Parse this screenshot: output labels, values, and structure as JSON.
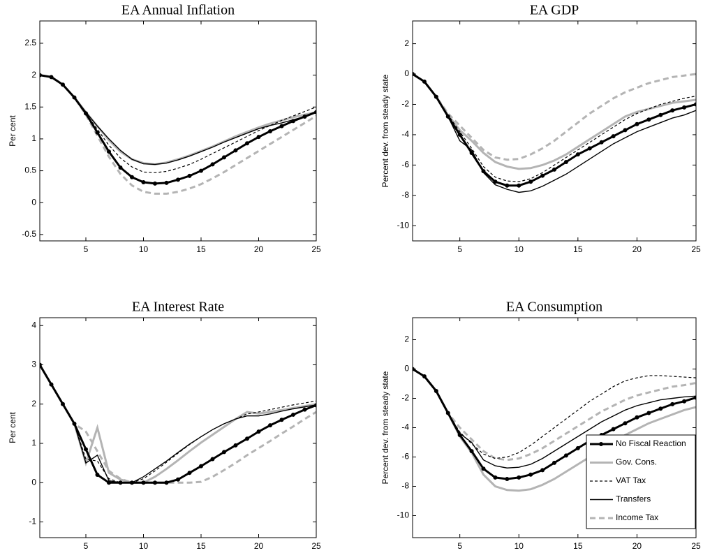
{
  "chart_data": [
    {
      "type": "line",
      "title": "EA Annual Inflation",
      "y_label": "Per cent",
      "x": [
        1,
        2,
        3,
        4,
        5,
        6,
        7,
        8,
        9,
        10,
        11,
        12,
        13,
        14,
        15,
        16,
        17,
        18,
        19,
        20,
        21,
        22,
        23,
        24,
        25
      ],
      "xlim": [
        1,
        25
      ],
      "xticks": [
        5,
        10,
        15,
        20,
        25
      ],
      "ylim": [
        -0.6,
        2.85
      ],
      "yticks": [
        -0.5,
        0,
        0.5,
        1,
        1.5,
        2,
        2.5
      ],
      "series": [
        {
          "color": "#000000",
          "line_width": 3,
          "line_style": "solid",
          "marker": "dot",
          "values": [
            2.0,
            1.97,
            1.85,
            1.65,
            1.4,
            1.1,
            0.8,
            0.55,
            0.4,
            0.32,
            0.3,
            0.31,
            0.36,
            0.42,
            0.5,
            0.6,
            0.71,
            0.82,
            0.93,
            1.03,
            1.12,
            1.2,
            1.28,
            1.35,
            1.42
          ]
        },
        {
          "color": "#b4b4b4",
          "line_width": 3,
          "line_style": "solid",
          "values": [
            2.0,
            1.97,
            1.85,
            1.65,
            1.42,
            1.2,
            0.98,
            0.8,
            0.68,
            0.62,
            0.6,
            0.63,
            0.68,
            0.74,
            0.81,
            0.88,
            0.96,
            1.04,
            1.11,
            1.18,
            1.24,
            1.29,
            1.34,
            1.38,
            1.42
          ]
        },
        {
          "color": "#000000",
          "line_width": 1.2,
          "line_style": "dashed",
          "values": [
            2.0,
            1.97,
            1.85,
            1.65,
            1.4,
            1.15,
            0.9,
            0.7,
            0.56,
            0.48,
            0.47,
            0.49,
            0.54,
            0.6,
            0.68,
            0.77,
            0.86,
            0.95,
            1.04,
            1.13,
            1.21,
            1.29,
            1.36,
            1.43,
            1.5
          ]
        },
        {
          "color": "#000000",
          "line_width": 1.4,
          "line_style": "solid",
          "values": [
            2.0,
            1.97,
            1.85,
            1.65,
            1.42,
            1.2,
            1.0,
            0.82,
            0.68,
            0.61,
            0.6,
            0.62,
            0.67,
            0.73,
            0.8,
            0.87,
            0.95,
            1.02,
            1.09,
            1.16,
            1.21,
            1.25,
            1.3,
            1.35,
            1.42
          ]
        },
        {
          "color": "#b4b4b4",
          "line_width": 3,
          "line_style": "dashed",
          "values": [
            2.0,
            1.97,
            1.85,
            1.65,
            1.38,
            1.05,
            0.72,
            0.45,
            0.27,
            0.17,
            0.14,
            0.14,
            0.17,
            0.22,
            0.29,
            0.38,
            0.48,
            0.59,
            0.7,
            0.81,
            0.92,
            1.03,
            1.14,
            1.25,
            1.36
          ]
        }
      ]
    },
    {
      "type": "line",
      "title": "EA GDP",
      "y_label": "Percent dev. from steady state",
      "x": [
        1,
        2,
        3,
        4,
        5,
        6,
        7,
        8,
        9,
        10,
        11,
        12,
        13,
        14,
        15,
        16,
        17,
        18,
        19,
        20,
        21,
        22,
        23,
        24,
        25
      ],
      "xlim": [
        1,
        25
      ],
      "xticks": [
        5,
        10,
        15,
        20,
        25
      ],
      "ylim": [
        -11,
        3.5
      ],
      "yticks": [
        -10,
        -8,
        -6,
        -4,
        -2,
        0,
        2
      ],
      "series": [
        {
          "color": "#000000",
          "line_width": 3,
          "line_style": "solid",
          "marker": "dot",
          "values": [
            0,
            -0.5,
            -1.5,
            -2.8,
            -4,
            -5.2,
            -6.4,
            -7.1,
            -7.35,
            -7.35,
            -7.1,
            -6.7,
            -6.3,
            -5.8,
            -5.3,
            -4.9,
            -4.5,
            -4.1,
            -3.7,
            -3.3,
            -3.0,
            -2.7,
            -2.4,
            -2.2,
            -2.0
          ]
        },
        {
          "color": "#b4b4b4",
          "line_width": 3,
          "line_style": "solid",
          "values": [
            0,
            -0.5,
            -1.5,
            -2.7,
            -3.7,
            -4.4,
            -5.2,
            -5.8,
            -6.1,
            -6.25,
            -6.2,
            -6.0,
            -5.7,
            -5.3,
            -4.8,
            -4.3,
            -3.8,
            -3.3,
            -2.8,
            -2.5,
            -2.3,
            -2.1,
            -1.9,
            -1.8,
            -1.7
          ]
        },
        {
          "color": "#000000",
          "line_width": 1.2,
          "line_style": "dashed",
          "values": [
            0,
            -0.5,
            -1.5,
            -2.7,
            -3.8,
            -4.9,
            -6.1,
            -6.8,
            -7.05,
            -7.1,
            -6.9,
            -6.5,
            -6.0,
            -5.5,
            -5.0,
            -4.5,
            -4.0,
            -3.5,
            -3.0,
            -2.6,
            -2.3,
            -2.0,
            -1.8,
            -1.6,
            -1.45
          ]
        },
        {
          "color": "#000000",
          "line_width": 1.4,
          "line_style": "solid",
          "values": [
            0,
            -0.5,
            -1.5,
            -2.8,
            -4.4,
            -5.0,
            -6.5,
            -7.3,
            -7.6,
            -7.8,
            -7.7,
            -7.4,
            -7.0,
            -6.6,
            -6.1,
            -5.6,
            -5.1,
            -4.6,
            -4.2,
            -3.8,
            -3.5,
            -3.2,
            -2.9,
            -2.7,
            -2.4
          ]
        },
        {
          "color": "#b4b4b4",
          "line_width": 3,
          "line_style": "dashed",
          "values": [
            0,
            -0.5,
            -1.5,
            -2.6,
            -3.4,
            -4.2,
            -5.0,
            -5.5,
            -5.65,
            -5.6,
            -5.3,
            -4.9,
            -4.4,
            -3.8,
            -3.2,
            -2.6,
            -2.1,
            -1.6,
            -1.2,
            -0.9,
            -0.6,
            -0.4,
            -0.2,
            -0.1,
            0.0
          ]
        }
      ]
    },
    {
      "type": "line",
      "title": "EA Interest Rate",
      "y_label": "Per cent",
      "x": [
        1,
        2,
        3,
        4,
        5,
        6,
        7,
        8,
        9,
        10,
        11,
        12,
        13,
        14,
        15,
        16,
        17,
        18,
        19,
        20,
        21,
        22,
        23,
        24,
        25
      ],
      "xlim": [
        1,
        25
      ],
      "xticks": [
        5,
        10,
        15,
        20,
        25
      ],
      "ylim": [
        -1.4,
        4.2
      ],
      "yticks": [
        -1,
        0,
        1,
        2,
        3,
        4
      ],
      "series": [
        {
          "color": "#000000",
          "line_width": 3,
          "line_style": "solid",
          "marker": "dot",
          "values": [
            3,
            2.5,
            2,
            1.5,
            0.85,
            0.2,
            0,
            0,
            0,
            0,
            0,
            0,
            0.08,
            0.25,
            0.42,
            0.6,
            0.78,
            0.95,
            1.12,
            1.3,
            1.46,
            1.6,
            1.73,
            1.86,
            1.97
          ]
        },
        {
          "color": "#b4b4b4",
          "line_width": 3,
          "line_style": "solid",
          "values": [
            3,
            2.5,
            2,
            1.5,
            0.5,
            1.4,
            0.25,
            0.08,
            0,
            0,
            0.15,
            0.35,
            0.57,
            0.8,
            1.02,
            1.22,
            1.42,
            1.62,
            1.8,
            1.76,
            1.8,
            1.85,
            1.9,
            1.95,
            2.0
          ]
        },
        {
          "color": "#000000",
          "line_width": 1.2,
          "line_style": "dashed",
          "values": [
            3,
            2.5,
            2,
            1.5,
            0.6,
            0.55,
            0.1,
            0,
            0,
            0.1,
            0.3,
            0.52,
            0.75,
            0.97,
            1.17,
            1.35,
            1.5,
            1.62,
            1.75,
            1.8,
            1.86,
            1.92,
            1.98,
            2.03,
            2.08
          ]
        },
        {
          "color": "#000000",
          "line_width": 1.4,
          "line_style": "solid",
          "values": [
            3,
            2.5,
            2,
            1.5,
            0.5,
            0.7,
            0.05,
            0,
            0,
            0.15,
            0.35,
            0.55,
            0.77,
            0.98,
            1.17,
            1.35,
            1.5,
            1.62,
            1.7,
            1.7,
            1.75,
            1.82,
            1.88,
            1.93,
            1.98
          ]
        },
        {
          "color": "#b4b4b4",
          "line_width": 3,
          "line_style": "dashed",
          "values": [
            3,
            2.5,
            2,
            1.5,
            1.3,
            0.8,
            0.3,
            0.1,
            0,
            0,
            0,
            0,
            0,
            0,
            0.02,
            0.15,
            0.32,
            0.5,
            0.7,
            0.88,
            1.06,
            1.25,
            1.43,
            1.62,
            1.8
          ]
        }
      ]
    },
    {
      "type": "line",
      "title": "EA Consumption",
      "y_label": "Percent dev. from steady state",
      "x": [
        1,
        2,
        3,
        4,
        5,
        6,
        7,
        8,
        9,
        10,
        11,
        12,
        13,
        14,
        15,
        16,
        17,
        18,
        19,
        20,
        21,
        22,
        23,
        24,
        25
      ],
      "xlim": [
        1,
        25
      ],
      "xticks": [
        5,
        10,
        15,
        20,
        25
      ],
      "ylim": [
        -11.5,
        3.5
      ],
      "yticks": [
        -10,
        -8,
        -6,
        -4,
        -2,
        0,
        2
      ],
      "legend": "lower right",
      "series": [
        {
          "name": "No Fiscal Reaction",
          "color": "#000000",
          "line_width": 3,
          "line_style": "solid",
          "marker": "dot",
          "values": [
            0,
            -0.5,
            -1.5,
            -3,
            -4.5,
            -5.6,
            -6.8,
            -7.4,
            -7.5,
            -7.4,
            -7.2,
            -6.9,
            -6.4,
            -5.9,
            -5.4,
            -4.9,
            -4.5,
            -4.1,
            -3.7,
            -3.3,
            -3.0,
            -2.7,
            -2.4,
            -2.2,
            -1.95
          ]
        },
        {
          "name": "Gov. Cons.",
          "color": "#b4b4b4",
          "line_width": 3,
          "line_style": "solid",
          "values": [
            0,
            -0.5,
            -1.5,
            -3,
            -4.6,
            -5.7,
            -7.2,
            -8.0,
            -8.25,
            -8.3,
            -8.2,
            -7.9,
            -7.5,
            -7.0,
            -6.5,
            -6.0,
            -5.5,
            -5.0,
            -4.5,
            -4.1,
            -3.7,
            -3.4,
            -3.1,
            -2.8,
            -2.6
          ]
        },
        {
          "name": "VAT Tax",
          "color": "#000000",
          "line_width": 1.2,
          "line_style": "dashed",
          "values": [
            0,
            -0.5,
            -1.5,
            -3,
            -4.3,
            -5.1,
            -5.8,
            -6.1,
            -6.0,
            -5.7,
            -5.2,
            -4.6,
            -4.0,
            -3.4,
            -2.8,
            -2.2,
            -1.7,
            -1.2,
            -0.8,
            -0.6,
            -0.45,
            -0.45,
            -0.5,
            -0.55,
            -0.6
          ]
        },
        {
          "name": "Transfers",
          "color": "#000000",
          "line_width": 1.4,
          "line_style": "solid",
          "values": [
            0,
            -0.5,
            -1.5,
            -3,
            -4.4,
            -5.0,
            -6.2,
            -6.6,
            -6.75,
            -6.7,
            -6.5,
            -6.1,
            -5.6,
            -5.1,
            -4.6,
            -4.1,
            -3.6,
            -3.2,
            -2.8,
            -2.5,
            -2.3,
            -2.1,
            -2.0,
            -1.9,
            -1.85
          ]
        },
        {
          "name": "Income Tax",
          "color": "#b4b4b4",
          "line_width": 3,
          "line_style": "dashed",
          "values": [
            0,
            -0.5,
            -1.5,
            -3,
            -4.0,
            -4.8,
            -5.6,
            -6.1,
            -6.2,
            -6.1,
            -5.8,
            -5.4,
            -4.9,
            -4.4,
            -3.9,
            -3.4,
            -2.9,
            -2.5,
            -2.1,
            -1.8,
            -1.6,
            -1.4,
            -1.2,
            -1.1,
            -0.95
          ]
        }
      ]
    }
  ]
}
